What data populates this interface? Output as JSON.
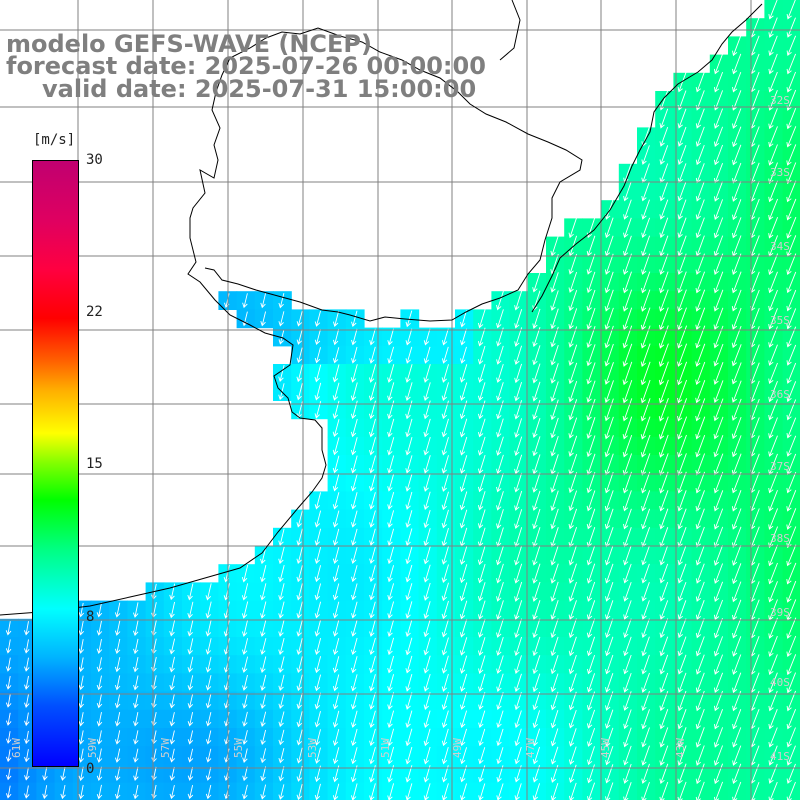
{
  "header": {
    "model": "modelo GEFS-WAVE (NCEP)",
    "forecast": "forecast date: 2025-07-26 00:00:00",
    "valid": "valid date: 2025-07-31 15:00:00"
  },
  "colorbar": {
    "unit": "[m/s]",
    "ticks": [
      "30",
      "22",
      "15",
      "8",
      "0"
    ],
    "range": [
      0,
      30
    ],
    "stops": [
      "#0000ff",
      "#00b4ff",
      "#00ffff",
      "#00ff00",
      "#ffff00",
      "#ff0000",
      "#c00070"
    ]
  },
  "map": {
    "variable": "wind speed",
    "lon_labels": [
      "61W",
      "59W",
      "57W",
      "55W",
      "53W",
      "51W",
      "49W",
      "47W",
      "45W",
      "43W"
    ],
    "lat_labels": [
      "32S",
      "33S",
      "34S",
      "35S",
      "36S",
      "37S",
      "38S",
      "39S",
      "40S",
      "41S"
    ],
    "grid_color": "#808080",
    "coast_color": "#000000",
    "arrow_color": "#ffffff",
    "wind_direction": "from north-northeast"
  }
}
